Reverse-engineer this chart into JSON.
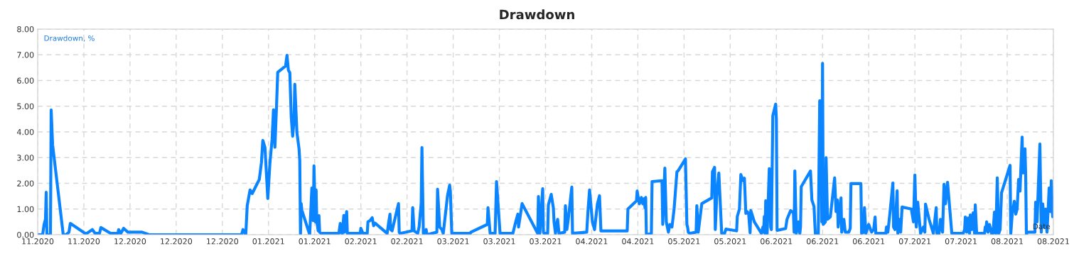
{
  "chart_data": {
    "type": "line",
    "title": "Drawdown",
    "xlabel": "Date",
    "ylabel": "Drawdown, %",
    "xlim": [
      "2020-11-06",
      "2021-08-19"
    ],
    "ylim": [
      0,
      8
    ],
    "xticks": [
      {
        "value": "2020-11-06",
        "label": "11.2020"
      },
      {
        "value": "2020-11-19",
        "label": "11.2020"
      },
      {
        "value": "2020-12-02",
        "label": "12.2020"
      },
      {
        "value": "2020-12-15",
        "label": "12.2020"
      },
      {
        "value": "2020-12-28",
        "label": "12.2020"
      },
      {
        "value": "2021-01-10",
        "label": "01.2021"
      },
      {
        "value": "2021-01-23",
        "label": "01.2021"
      },
      {
        "value": "2021-02-05",
        "label": "02.2021"
      },
      {
        "value": "2021-02-18",
        "label": "02.2021"
      },
      {
        "value": "2021-03-03",
        "label": "03.2021"
      },
      {
        "value": "2021-03-16",
        "label": "03.2021"
      },
      {
        "value": "2021-03-29",
        "label": "03.2021"
      },
      {
        "value": "2021-04-11",
        "label": "04.2021"
      },
      {
        "value": "2021-04-24",
        "label": "04.2021"
      },
      {
        "value": "2021-05-07",
        "label": "05.2021"
      },
      {
        "value": "2021-05-20",
        "label": "05.2021"
      },
      {
        "value": "2021-06-02",
        "label": "06.2021"
      },
      {
        "value": "2021-06-15",
        "label": "06.2021"
      },
      {
        "value": "2021-06-28",
        "label": "06.2021"
      },
      {
        "value": "2021-07-11",
        "label": "07.2021"
      },
      {
        "value": "2021-07-24",
        "label": "07.2021"
      },
      {
        "value": "2021-08-06",
        "label": "08.2021"
      },
      {
        "value": "2021-08-19",
        "label": "08.2021"
      }
    ],
    "yticks": [
      {
        "value": 0,
        "label": "0.00"
      },
      {
        "value": 1,
        "label": "1.00"
      },
      {
        "value": 2,
        "label": "2.00"
      },
      {
        "value": 3,
        "label": "3.00"
      },
      {
        "value": 4,
        "label": "4.00"
      },
      {
        "value": 5,
        "label": "5.00"
      },
      {
        "value": 6,
        "label": "6.00"
      },
      {
        "value": 7,
        "label": "7.00"
      },
      {
        "value": 8,
        "label": "8.00"
      }
    ],
    "grid": true,
    "legend": false,
    "marker": "none",
    "line_style": "solid",
    "series": [
      {
        "color": "#0a84ff",
        "x": [
          "2020-11-06",
          "2020-11-07T09:36",
          "2020-11-07T19:12",
          "2020-11-08T04:48",
          "2020-11-08T09:36",
          "2020-11-08T14:24",
          "2020-11-09T14:24",
          "2020-11-09T19:12",
          "2020-11-10T04:48",
          "2020-11-13T04:48",
          "2020-11-14",
          "2020-11-14T19:12",
          "2020-11-15T04:48",
          "2020-11-19T09:36",
          "2020-11-19T19:12",
          "2020-11-21T09:36",
          "2020-11-22T04:48",
          "2020-11-23T09:36",
          "2020-11-23T19:12",
          "2020-11-26T14:24",
          "2020-11-28T14:24",
          "2020-11-28T19:12",
          "2020-11-29T09:36",
          "2020-11-30T04:48",
          "2020-12-01T09:36",
          "2020-12-05T09:36",
          "2020-12-07T09:36",
          "2021-01-02T09:36",
          "2021-01-02T19:12",
          "2021-01-03T14:24",
          "2021-01-04",
          "2021-01-04T19:12",
          "2021-01-05T09:36",
          "2021-01-07T09:36",
          "2021-01-08",
          "2021-01-08T09:36",
          "2021-01-09",
          "2021-01-09T19:12",
          "2021-01-10T09:36",
          "2021-01-11",
          "2021-01-11T09:36",
          "2021-01-11T19:12",
          "2021-01-12T04:48",
          "2021-01-12T14:24",
          "2021-01-14T19:12",
          "2021-01-15T04:48",
          "2021-01-15T14:24",
          "2021-01-16",
          "2021-01-16T09:36",
          "2021-01-16T19:12",
          "2021-01-17T04:48",
          "2021-01-17T09:36",
          "2021-01-18",
          "2021-01-18T14:24",
          "2021-01-18T19:12",
          "2021-01-19",
          "2021-01-19T04:48",
          "2021-01-19T09:36",
          "2021-01-21T14:24",
          "2021-01-22T04:48",
          "2021-01-22T14:24",
          "2021-01-22T19:12",
          "2021-01-23T04:48",
          "2021-01-23T09:36",
          "2021-01-23T14:24",
          "2021-01-24",
          "2021-01-24T04:48",
          "2021-01-24T09:36",
          "2021-01-24T19:12",
          "2021-01-29T19:12",
          "2021-01-30T04:48",
          "2021-01-30T09:36",
          "2021-01-30T19:12",
          "2021-01-31T04:48",
          "2021-01-31T09:36",
          "2021-02-01",
          "2021-02-01T04:48",
          "2021-02-04T19:12",
          "2021-02-05",
          "2021-02-05T14:24",
          "2021-02-06T19:12",
          "2021-02-07",
          "2021-02-07T14:24",
          "2021-02-08T04:48",
          "2021-02-08T14:24",
          "2021-02-09",
          "2021-02-12T09:36",
          "2021-02-12T19:12",
          "2021-02-13T04:48",
          "2021-02-13T09:36",
          "2021-02-13T19:12",
          "2021-02-15T14:24",
          "2021-02-15T19:12",
          "2021-02-16",
          "2021-02-19T09:36",
          "2021-02-19T14:24",
          "2021-02-20",
          "2021-02-21",
          "2021-02-21T09:36",
          "2021-02-22",
          "2021-02-22T04:48",
          "2021-02-22T14:24",
          "2021-02-23",
          "2021-02-23T09:36",
          "2021-02-23T14:24",
          "2021-02-26T09:36",
          "2021-02-26T14:24",
          "2021-02-27T04:48",
          "2021-02-27T19:12",
          "2021-02-28T04:48",
          "2021-03-01T09:36",
          "2021-03-02",
          "2021-03-02T04:48",
          "2021-03-02T14:24",
          "2021-03-07T19:12",
          "2021-03-08",
          "2021-03-12T14:24",
          "2021-03-12T19:12",
          "2021-03-13T09:36",
          "2021-03-14T19:12",
          "2021-03-15T04:48",
          "2021-03-16T04:48",
          "2021-03-19T19:12",
          "2021-03-20T14:24",
          "2021-03-21T04:48",
          "2021-03-21T09:36",
          "2021-03-22T09:36",
          "2021-03-26T19:12",
          "2021-03-27",
          "2021-03-27T09:36",
          "2021-03-28T04:48",
          "2021-03-28T09:36",
          "2021-03-28T14:24",
          "2021-03-29T14:24",
          "2021-03-29T19:12",
          "2021-03-30T14:24",
          "2021-03-31T04:48",
          "2021-03-31T09:36",
          "2021-03-31T19:12",
          "2021-04-01T09:36",
          "2021-04-01T19:12",
          "2021-04-03T09:36",
          "2021-04-03T14:24",
          "2021-04-04",
          "2021-04-04T09:36",
          "2021-04-05T09:36",
          "2021-04-05T14:24",
          "2021-04-09T14:24",
          "2021-04-10",
          "2021-04-10T09:36",
          "2021-04-11T04:48",
          "2021-04-11T19:12",
          "2021-04-12T14:24",
          "2021-04-13T04:48",
          "2021-04-13T14:24",
          "2021-04-21",
          "2021-04-21T04:48",
          "2021-04-23T14:24",
          "2021-04-23T19:12",
          "2021-04-24T09:36",
          "2021-04-25",
          "2021-04-25T09:36",
          "2021-04-25T19:12",
          "2021-04-26",
          "2021-04-26T04:48",
          "2021-04-26T09:36",
          "2021-04-27T19:12",
          "2021-04-28",
          "2021-04-30T19:12",
          "2021-05-01",
          "2021-05-01T14:24",
          "2021-05-02",
          "2021-05-02T14:24",
          "2021-05-03",
          "2021-05-03T14:24",
          "2021-05-04T04:48",
          "2021-05-05",
          "2021-05-05T09:36",
          "2021-05-07T09:36",
          "2021-05-07T19:12",
          "2021-05-08",
          "2021-05-08T04:48",
          "2021-05-08T14:24",
          "2021-05-10T09:36",
          "2021-05-10T14:24",
          "2021-05-11",
          "2021-05-12",
          "2021-05-14T19:12",
          "2021-05-15",
          "2021-05-15T14:24",
          "2021-05-15T19:12",
          "2021-05-16T04:48",
          "2021-05-16T19:12",
          "2021-05-17T14:24",
          "2021-05-18T09:36",
          "2021-05-18T19:12",
          "2021-05-21T19:12",
          "2021-05-22",
          "2021-05-22T14:24",
          "2021-05-23",
          "2021-05-23T14:24",
          "2021-05-24",
          "2021-05-24T09:36",
          "2021-05-24T19:12",
          "2021-05-25T04:48",
          "2021-05-25T14:24",
          "2021-05-25T19:12",
          "2021-05-26T19:12",
          "2021-05-28T19:12",
          "2021-05-29T04:48",
          "2021-05-29T09:36",
          "2021-05-29T14:24",
          "2021-05-29T19:12",
          "2021-05-30",
          "2021-05-30T09:36",
          "2021-05-31",
          "2021-05-31T09:36",
          "2021-05-31T14:24",
          "2021-06-01",
          "2021-06-01T19:12",
          "2021-06-02",
          "2021-06-02T04:48",
          "2021-06-04T14:24",
          "2021-06-05",
          "2021-06-06",
          "2021-06-06T19:12",
          "2021-06-07",
          "2021-06-07T04:48",
          "2021-06-07T14:24",
          "2021-06-08T04:48",
          "2021-06-08T14:24",
          "2021-06-08T19:12",
          "2021-06-09",
          "2021-06-11T14:24",
          "2021-06-12",
          "2021-06-12T14:24",
          "2021-06-12T19:12",
          "2021-06-13",
          "2021-06-13T19:12",
          "2021-06-14T04:48",
          "2021-06-14T14:24",
          "2021-06-14T19:12",
          "2021-06-15",
          "2021-06-15T04:48",
          "2021-06-15T19:12",
          "2021-06-16",
          "2021-06-16T09:36",
          "2021-06-17T04:48",
          "2021-06-18T09:36",
          "2021-06-18T19:12",
          "2021-06-19T04:48",
          "2021-06-19T09:36",
          "2021-06-20T04:48",
          "2021-06-20T09:36",
          "2021-06-21",
          "2021-06-21T09:36",
          "2021-06-22T09:36",
          "2021-06-22T19:12",
          "2021-06-23",
          "2021-06-25T19:12",
          "2021-06-26",
          "2021-06-26T14:24",
          "2021-06-26T19:12",
          "2021-06-27T04:48",
          "2021-06-28",
          "2021-06-28T19:12",
          "2021-06-29T09:36",
          "2021-06-29T19:12",
          "2021-06-30",
          "2021-07-02T19:12",
          "2021-07-03",
          "2021-07-03T09:36",
          "2021-07-04",
          "2021-07-04T19:12",
          "2021-07-05",
          "2021-07-05T09:36",
          "2021-07-06",
          "2021-07-06T04:48",
          "2021-07-06T14:24",
          "2021-07-07",
          "2021-07-07T09:36",
          "2021-07-10",
          "2021-07-10T14:24",
          "2021-07-11",
          "2021-07-11T09:36",
          "2021-07-11T19:12",
          "2021-07-12T14:24",
          "2021-07-13T09:36",
          "2021-07-13T19:12",
          "2021-07-14",
          "2021-07-15",
          "2021-07-16T04:48",
          "2021-07-16T09:36",
          "2021-07-17",
          "2021-07-17T04:48",
          "2021-07-17T19:12",
          "2021-07-18T04:48",
          "2021-07-18T19:12",
          "2021-07-19T04:48",
          "2021-07-19T14:24",
          "2021-07-20T04:48",
          "2021-07-21T09:36",
          "2021-07-24T14:24",
          "2021-07-25",
          "2021-07-25T04:48",
          "2021-07-25T14:24",
          "2021-07-26",
          "2021-07-26T09:36",
          "2021-07-26T14:24",
          "2021-07-27",
          "2021-07-27T09:36",
          "2021-07-27T19:12",
          "2021-07-28",
          "2021-07-28T09:36",
          "2021-07-30T14:24",
          "2021-07-30T19:12",
          "2021-07-31",
          "2021-07-31T04:48",
          "2021-07-31T14:24",
          "2021-08-01",
          "2021-08-01T14:24",
          "2021-08-02",
          "2021-08-02T09:36",
          "2021-08-02T19:12",
          "2021-08-03T04:48",
          "2021-08-03T09:36",
          "2021-08-03T14:24",
          "2021-08-04",
          "2021-08-04T09:36",
          "2021-08-06T19:12",
          "2021-08-07",
          "2021-08-07T09:36",
          "2021-08-08",
          "2021-08-08T09:36",
          "2021-08-08T19:12",
          "2021-08-09T04:48",
          "2021-08-09T14:24",
          "2021-08-10T04:48",
          "2021-08-10T09:36",
          "2021-08-11",
          "2021-08-11T04:48",
          "2021-08-11T09:36",
          "2021-08-11T14:24",
          "2021-08-13T19:12",
          "2021-08-14",
          "2021-08-14T09:36",
          "2021-08-15T04:48",
          "2021-08-15T14:24",
          "2021-08-16",
          "2021-08-16T09:36",
          "2021-08-16T19:12",
          "2021-08-17T04:48",
          "2021-08-17T14:24",
          "2021-08-17T19:12",
          "2021-08-18T04:48",
          "2021-08-18T09:36",
          "2021-08-18T19:12"
        ],
        "values": [
          0,
          0,
          0.4,
          0.6,
          1.65,
          0,
          0,
          4.85,
          3.5,
          0,
          0,
          0.1,
          0.44,
          0.05,
          0.05,
          0.2,
          0.05,
          0.05,
          0.28,
          0.05,
          0.05,
          0.2,
          0.05,
          0.25,
          0.1,
          0.1,
          0,
          0,
          0.2,
          0,
          1.13,
          1.74,
          1.6,
          2.15,
          2.8,
          3.67,
          3.4,
          1.41,
          2.8,
          3.7,
          4.86,
          3.4,
          4.8,
          6.32,
          6.56,
          6.98,
          6.4,
          6.3,
          4.58,
          3.83,
          4.5,
          5.85,
          3.97,
          3.34,
          2.87,
          0,
          1.21,
          0.95,
          0,
          1.82,
          0.55,
          2.68,
          0.5,
          1.74,
          0.5,
          0.15,
          0.74,
          0.1,
          0.05,
          0.05,
          0.44,
          0.1,
          0.05,
          0.75,
          0.1,
          0.9,
          0.05,
          0.05,
          0.25,
          0.05,
          0.05,
          0.5,
          0.55,
          0.66,
          0.35,
          0.45,
          0.05,
          0.45,
          0.8,
          0.2,
          0.15,
          1.21,
          0.1,
          0.05,
          0.15,
          1.05,
          0.15,
          0.05,
          0.3,
          1.24,
          3.39,
          0.05,
          0.05,
          0.2,
          0,
          0.1,
          1.77,
          0.3,
          0.2,
          0.05,
          1.52,
          1.93,
          1.7,
          0.05,
          0.05,
          0.1,
          0.4,
          1.05,
          0.05,
          0.05,
          2.07,
          0.05,
          0.05,
          0.5,
          0.8,
          0.3,
          1.21,
          0.05,
          1.49,
          0.05,
          1.79,
          0.1,
          0.05,
          0.05,
          1.16,
          1.57,
          1.05,
          0.5,
          0.05,
          0.6,
          0.05,
          0.1,
          1.13,
          0.2,
          0.6,
          1.85,
          0.05,
          0.1,
          1.02,
          1.74,
          0.5,
          0.2,
          1.19,
          1.52,
          0.15,
          0.15,
          1.0,
          1.32,
          1.7,
          1.2,
          1.45,
          1.2,
          1.4,
          1.05,
          1.45,
          0,
          0.05,
          2.07,
          2.1,
          0.4,
          2.59,
          0.5,
          0.1,
          0.4,
          0.3,
          1.0,
          2.45,
          2.5,
          2.95,
          0.4,
          0.3,
          0.1,
          0.05,
          0.1,
          1.13,
          0.1,
          1.21,
          1.43,
          2.45,
          2.62,
          0.2,
          1.5,
          2.4,
          0.05,
          0.05,
          0.22,
          0.15,
          0.71,
          1.0,
          2.34,
          2.1,
          2.2,
          0.83,
          0.9,
          0.8,
          0.08,
          0.94,
          0.5,
          0.05,
          0.3,
          0.1,
          0.71,
          0.05,
          1.32,
          0.05,
          2.57,
          0.3,
          0.2,
          4.63,
          5.08,
          4.5,
          0.17,
          0.24,
          0.6,
          0.94,
          0.85,
          0.1,
          2.48,
          0.05,
          0.5,
          0.05,
          0.3,
          1.87,
          2.48,
          1.35,
          1.1,
          0.5,
          0,
          0,
          5.21,
          5.2,
          0.5,
          6.67,
          0.4,
          0.5,
          3.0,
          0.6,
          0.7,
          2.21,
          0.9,
          1.35,
          0.3,
          1.43,
          0.1,
          0.6,
          0.1,
          0.1,
          0.25,
          1.99,
          1.99,
          0.05,
          0.1,
          1.05,
          0.05,
          0.4,
          0.1,
          0.2,
          0.69,
          0.05,
          0.05,
          0.3,
          0.1,
          0.88,
          2.01,
          0.3,
          0.2,
          1.71,
          0.05,
          0.6,
          0.1,
          1.08,
          1.0,
          0.5,
          2.32,
          0.3,
          1.27,
          0.05,
          0.3,
          0.1,
          1.19,
          0.6,
          0.05,
          0.3,
          1.05,
          0.05,
          0.05,
          0.6,
          0.1,
          1.96,
          1.2,
          2.04,
          0.05,
          0.05,
          0.2,
          0.69,
          0.1,
          0.65,
          0.05,
          0.77,
          0.2,
          0.85,
          0.05,
          1.16,
          0.05,
          0.05,
          0.3,
          0.15,
          0.5,
          0.1,
          0.4,
          0.05,
          0.05,
          0.88,
          0.05,
          2.21,
          1.0,
          0.05,
          0.2,
          1.63,
          2.7,
          0.03,
          0.8,
          1.3,
          0.8,
          1.0,
          2.15,
          1.7,
          3.8,
          2.4,
          3.34,
          2.3,
          0,
          0.1,
          0.1,
          1.27,
          0.5,
          3.53,
          0.1,
          1.2,
          0.3,
          1.0,
          0.1,
          1.2,
          1.82,
          0.9,
          2.1,
          0.7
        ]
      }
    ]
  }
}
